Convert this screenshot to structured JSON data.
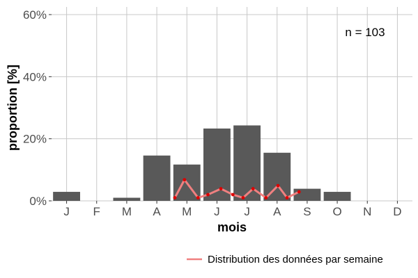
{
  "chart_data": {
    "type": "bar",
    "categories": [
      "J",
      "F",
      "M",
      "A",
      "M",
      "J",
      "J",
      "A",
      "S",
      "O",
      "N",
      "D"
    ],
    "values": [
      2.9,
      0,
      1.0,
      14.6,
      11.7,
      23.3,
      24.3,
      15.5,
      3.9,
      2.9,
      0,
      0
    ],
    "ylim": [
      0,
      60
    ],
    "yticks": [
      0,
      20,
      40,
      60
    ],
    "ytick_labels": [
      "0%",
      "20%",
      "40%",
      "60%"
    ],
    "xlabel": "mois",
    "ylabel": "proportion [%]",
    "annotation": "n = 103",
    "grid": true,
    "legend_position": "bottom-right",
    "bar_color": "#595959",
    "series": [
      {
        "name": "Distribution des données par semaine",
        "type": "line",
        "color": "#f08080",
        "point_color": "#dd0000",
        "x": [
          3.6,
          3.92,
          4.37,
          4.7,
          5.13,
          5.53,
          5.87,
          6.2,
          6.63,
          7.03,
          7.33,
          7.73
        ],
        "values": [
          1.0,
          6.8,
          1.0,
          2.0,
          3.9,
          2.0,
          1.0,
          3.9,
          1.0,
          4.9,
          1.0,
          2.9
        ]
      }
    ]
  }
}
